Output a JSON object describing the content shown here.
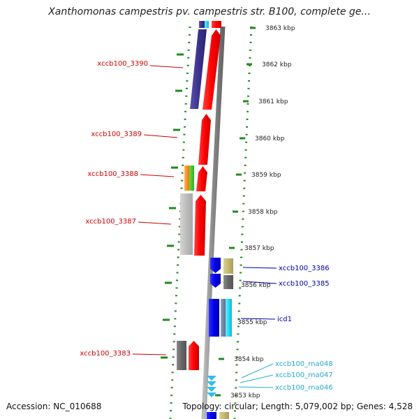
{
  "header": {
    "title": "Xanthomonas campestris pv. campestris str. B100, complete ge..."
  },
  "footer": {
    "accession": "Accession: NC_010688",
    "topology": "Topology: circular; Length: 5,079,002 bp; Genes: 4,528"
  },
  "scale": {
    "ticks": [
      "3863 kbp",
      "3862 kbp",
      "3861 kbp",
      "3860 kbp",
      "3859 kbp",
      "3858 kbp",
      "3857 kbp",
      "3856 kbp",
      "3855 kbp",
      "3854 kbp",
      "3853 kbp"
    ]
  },
  "gene_labels": [
    {
      "text": "xccb100_3390",
      "color": "#cc0000"
    },
    {
      "text": "xccb100_3389",
      "color": "#cc0000"
    },
    {
      "text": "xccb100_3388",
      "color": "#cc0000"
    },
    {
      "text": "xccb100_3387",
      "color": "#cc0000"
    },
    {
      "text": "xccb100_3383",
      "color": "#cc0000"
    },
    {
      "text": "xccb100_3386",
      "color": "#0000aa"
    },
    {
      "text": "xccb100_3385",
      "color": "#0000aa"
    },
    {
      "text": "icd1",
      "color": "#0000aa"
    },
    {
      "text": "xccb100_rna048",
      "color": "#22aacc"
    },
    {
      "text": "xccb100_rna047",
      "color": "#22aacc"
    },
    {
      "text": "xccb100_rna046",
      "color": "#22aacc"
    }
  ],
  "colors": {
    "forward_cds": "#ff0000",
    "reverse_cds": "#0000ee",
    "rna": "#33bbee",
    "backbone": "#888888",
    "gc_marks": "#228822"
  }
}
